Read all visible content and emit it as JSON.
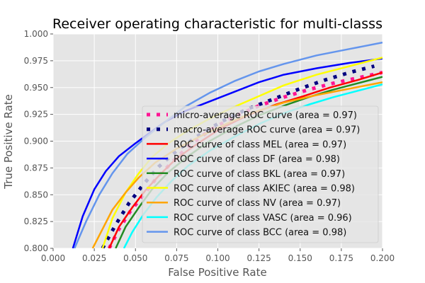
{
  "chart_data": {
    "type": "line",
    "title": "Receiver operating characteristic for multi-classs",
    "xlabel": "False Positive Rate",
    "ylabel": "True Positive Rate",
    "xlim": [
      0.0,
      0.2
    ],
    "ylim": [
      0.8,
      1.0
    ],
    "x_ticks": [
      "0.000",
      "0.025",
      "0.050",
      "0.075",
      "0.100",
      "0.125",
      "0.150",
      "0.175",
      "0.200"
    ],
    "y_ticks": [
      "0.800",
      "0.825",
      "0.850",
      "0.875",
      "0.900",
      "0.925",
      "0.950",
      "0.975",
      "1.000"
    ],
    "grid": true,
    "legend_position": "lower-right",
    "series": [
      {
        "name": "micro-average ROC curve (area = 0.97)",
        "color": "#ff1493",
        "dash": "dotted-thick",
        "x": [
          0.034,
          0.04,
          0.047,
          0.055,
          0.063,
          0.072,
          0.082,
          0.095,
          0.11,
          0.125,
          0.14,
          0.155,
          0.17,
          0.185,
          0.2
        ],
        "y": [
          0.8,
          0.818,
          0.835,
          0.85,
          0.866,
          0.88,
          0.895,
          0.91,
          0.923,
          0.933,
          0.941,
          0.948,
          0.954,
          0.959,
          0.964
        ]
      },
      {
        "name": "macro-average ROC curve (area = 0.97)",
        "color": "#000080",
        "dash": "dotted-thick",
        "x": [
          0.03,
          0.038,
          0.046,
          0.055,
          0.064,
          0.075,
          0.088,
          0.102,
          0.118,
          0.135,
          0.15,
          0.165,
          0.18,
          0.195
        ],
        "y": [
          0.8,
          0.822,
          0.842,
          0.86,
          0.876,
          0.891,
          0.905,
          0.918,
          0.93,
          0.94,
          0.949,
          0.957,
          0.964,
          0.97
        ]
      },
      {
        "name": "ROC curve of class MEL (area = 0.97)",
        "color": "#ff0000",
        "dash": "solid",
        "x": [
          0.034,
          0.04,
          0.048,
          0.056,
          0.065,
          0.075,
          0.088,
          0.102,
          0.118,
          0.135,
          0.152,
          0.168,
          0.185,
          0.2
        ],
        "y": [
          0.8,
          0.82,
          0.838,
          0.854,
          0.869,
          0.884,
          0.898,
          0.912,
          0.924,
          0.934,
          0.942,
          0.95,
          0.957,
          0.964
        ]
      },
      {
        "name": "ROC curve of class DF (area = 0.98)",
        "color": "#0000ff",
        "dash": "solid",
        "x": [
          0.012,
          0.018,
          0.025,
          0.032,
          0.04,
          0.05,
          0.058,
          0.068,
          0.08,
          0.095,
          0.11,
          0.125,
          0.14,
          0.16,
          0.18,
          0.2
        ],
        "y": [
          0.8,
          0.83,
          0.855,
          0.872,
          0.886,
          0.898,
          0.907,
          0.918,
          0.928,
          0.937,
          0.946,
          0.955,
          0.962,
          0.968,
          0.973,
          0.977
        ]
      },
      {
        "name": "ROC curve of class BKL (area = 0.97)",
        "color": "#228b22",
        "dash": "solid",
        "x": [
          0.038,
          0.044,
          0.052,
          0.06,
          0.07,
          0.082,
          0.095,
          0.11,
          0.125,
          0.14,
          0.155,
          0.17,
          0.185,
          0.2
        ],
        "y": [
          0.8,
          0.82,
          0.838,
          0.855,
          0.871,
          0.886,
          0.9,
          0.913,
          0.924,
          0.933,
          0.941,
          0.948,
          0.954,
          0.96
        ]
      },
      {
        "name": "ROC curve of class AKIEC (area = 0.98)",
        "color": "#ffff00",
        "dash": "solid",
        "x": [
          0.03,
          0.036,
          0.044,
          0.052,
          0.06,
          0.07,
          0.082,
          0.095,
          0.11,
          0.125,
          0.14,
          0.16,
          0.18,
          0.2
        ],
        "y": [
          0.8,
          0.828,
          0.852,
          0.87,
          0.885,
          0.898,
          0.91,
          0.921,
          0.932,
          0.942,
          0.952,
          0.962,
          0.97,
          0.978
        ]
      },
      {
        "name": "ROC curve of class NV (area = 0.97)",
        "color": "#ffa500",
        "dash": "solid",
        "x": [
          0.024,
          0.03,
          0.036,
          0.044,
          0.052,
          0.062,
          0.075,
          0.09,
          0.105,
          0.12,
          0.14,
          0.16,
          0.18,
          0.2
        ],
        "y": [
          0.8,
          0.818,
          0.836,
          0.852,
          0.866,
          0.88,
          0.893,
          0.905,
          0.916,
          0.926,
          0.936,
          0.943,
          0.949,
          0.955
        ]
      },
      {
        "name": "ROC curve of class VASC (area = 0.96)",
        "color": "#00ffff",
        "dash": "solid",
        "x": [
          0.043,
          0.048,
          0.055,
          0.063,
          0.072,
          0.082,
          0.095,
          0.11,
          0.125,
          0.14,
          0.155,
          0.17,
          0.185,
          0.2
        ],
        "y": [
          0.8,
          0.815,
          0.832,
          0.848,
          0.863,
          0.877,
          0.891,
          0.904,
          0.916,
          0.926,
          0.934,
          0.941,
          0.947,
          0.953
        ]
      },
      {
        "name": "ROC curve of class BCC (area = 0.98)",
        "color": "#6495ed",
        "dash": "solid",
        "x": [
          0.013,
          0.02,
          0.028,
          0.036,
          0.045,
          0.055,
          0.068,
          0.08,
          0.095,
          0.11,
          0.125,
          0.14,
          0.16,
          0.18,
          0.2
        ],
        "y": [
          0.8,
          0.825,
          0.85,
          0.87,
          0.888,
          0.902,
          0.918,
          0.932,
          0.945,
          0.956,
          0.965,
          0.972,
          0.98,
          0.986,
          0.992
        ]
      }
    ]
  }
}
